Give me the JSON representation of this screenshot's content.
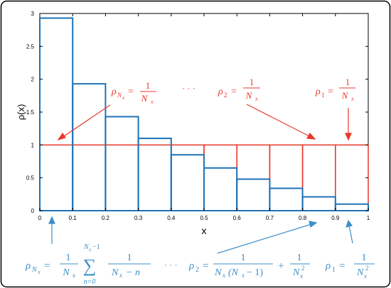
{
  "colors": {
    "red": "#e8382a",
    "blue": "#3d8fc8",
    "bar_blue": "#1e73b6",
    "ticks": "#000000",
    "frame": "#000000"
  },
  "chart_data": {
    "type": "bar",
    "xlabel": "x",
    "ylabel": "ρ(x)",
    "xlim": [
      0,
      1
    ],
    "ylim": [
      0,
      3
    ],
    "grid": false,
    "x_ticks": [
      "0",
      "0.1",
      "0.2",
      "0.3",
      "0.4",
      "0.5",
      "0.6",
      "0.7",
      "0.8",
      "0.9",
      "1"
    ],
    "y_ticks": [
      "0",
      "0.5",
      "1",
      "1.5",
      "2",
      "2.5",
      "3"
    ],
    "bin_edges": [
      0,
      0.1,
      0.2,
      0.3,
      0.4,
      0.5,
      0.6,
      0.7,
      0.8,
      0.9,
      1.0
    ],
    "series": [
      {
        "color": "blue",
        "values": [
          2.93,
          1.93,
          1.43,
          1.1,
          0.85,
          0.65,
          0.48,
          0.34,
          0.21,
          0.1
        ]
      },
      {
        "color": "red",
        "values": [
          1,
          1,
          1,
          1,
          1,
          1,
          1,
          1,
          1,
          1
        ]
      }
    ]
  },
  "annotations": {
    "red": {
      "rho_nx": {
        "symbol": "ρ",
        "sub": "N",
        "subsub": "x",
        "eq": "=",
        "num": "1",
        "den": "N",
        "densub": "x"
      },
      "dots": "· · ·",
      "rho_2": {
        "symbol": "ρ",
        "sub": "2",
        "eq": "=",
        "num": "1",
        "den": "N",
        "densub": "x"
      },
      "rho_1": {
        "symbol": "ρ",
        "sub": "1",
        "eq": "=",
        "num": "1",
        "den": "N",
        "densub": "x"
      }
    },
    "blue": {
      "rho_nx": {
        "symbol": "ρ",
        "sub": "N",
        "subsub": "x",
        "eq": "=",
        "num": "1",
        "den": "N",
        "densub": "x",
        "sum": "∑",
        "sum_upper": "N",
        "sum_upper_sub": "x",
        "sum_upper_rest": "−1",
        "sum_lower": "n=0",
        "num2": "1",
        "den2_a": "N",
        "den2_a_sub": "x",
        "den2_b": "− n"
      },
      "dots": "· · ·",
      "rho_2": {
        "symbol": "ρ",
        "sub": "2",
        "eq": "=",
        "num": "1",
        "den": "N",
        "densub": "x",
        "den_paren": "(N",
        "den_paren_sub": "x",
        "den_paren_rest": "− 1)",
        "plus": "+",
        "num2": "1",
        "den2": "N",
        "den2_sub": "x",
        "den2_sup": "2"
      },
      "rho_1": {
        "symbol": "ρ",
        "sub": "1",
        "eq": "=",
        "num": "1",
        "den": "N",
        "densub": "x",
        "densup": "2"
      }
    }
  }
}
